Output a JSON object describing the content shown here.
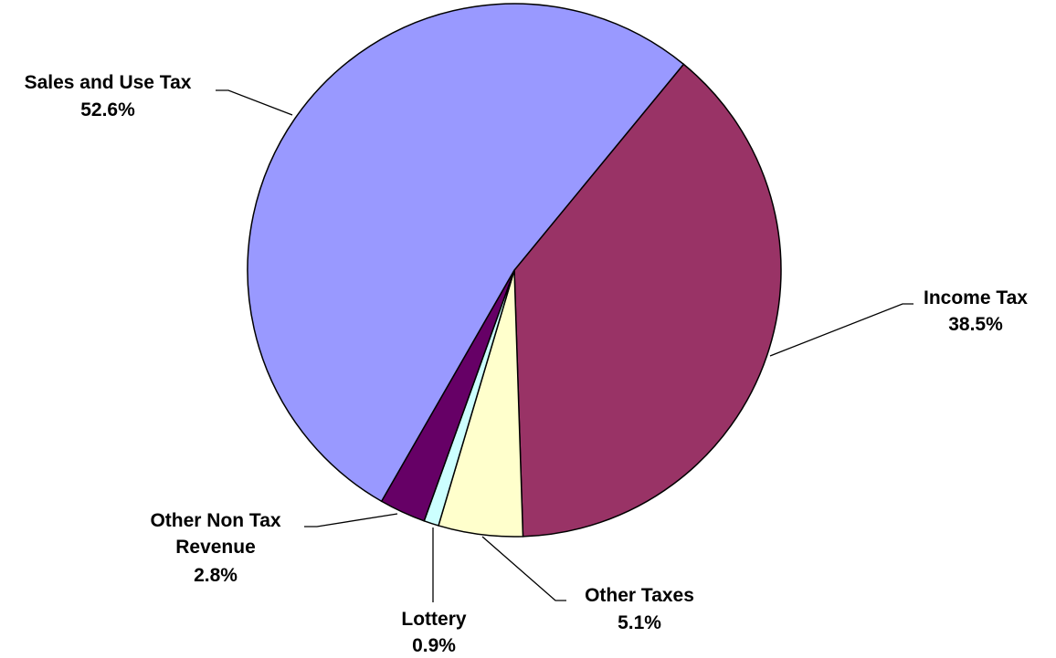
{
  "chart_data": {
    "type": "pie",
    "title": "",
    "start_angle_deg": 39.4,
    "direction": "clockwise",
    "slices": [
      {
        "name": "Income Tax",
        "value": 38.5,
        "label": "38.5%",
        "color": "#993366"
      },
      {
        "name": "Other Taxes",
        "value": 5.1,
        "label": "5.1%",
        "color": "#FFFFCC"
      },
      {
        "name": "Lottery",
        "value": 0.9,
        "label": "0.9%",
        "color": "#CCFFFF"
      },
      {
        "name": "Other Non Tax Revenue",
        "value": 2.8,
        "label": "2.8%",
        "color": "#660066"
      },
      {
        "name": "Sales and Use Tax",
        "value": 52.6,
        "label": "52.6%",
        "color": "#9999FF"
      }
    ]
  }
}
